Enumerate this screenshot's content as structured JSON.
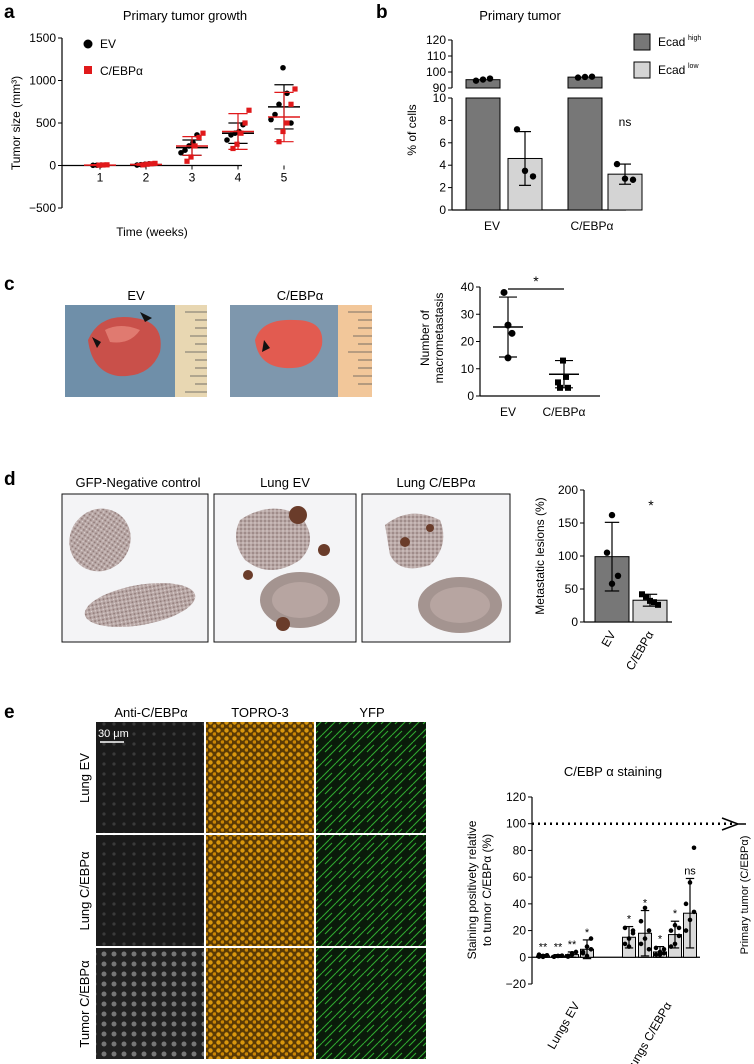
{
  "panels": {
    "a": "a",
    "b": "b",
    "c": "c",
    "d": "d",
    "e": "e"
  },
  "photo_labels": {
    "c_ev": "EV",
    "c_cebpa": "C/EBPα",
    "d_neg": "GFP-Negative control",
    "d_ev": "Lung EV",
    "d_cebpa": "Lung C/EBPα",
    "e_col1": "Anti-C/EBPα",
    "e_col2": "TOPRO-3",
    "e_col3": "YFP",
    "e_row1": "Lung EV",
    "e_row2": "Lung C/EBPα",
    "e_row3": "Tumor C/EBPα",
    "e_scale": "30 μm"
  },
  "colors": {
    "ev": "#000000",
    "cebpa": "#e0191b",
    "ecad_high": "#777777",
    "ecad_low": "#d4d4d4"
  },
  "chart_data": [
    {
      "id": "a",
      "type": "scatter",
      "title": "Primary tumor growth",
      "xlabel": "Time (weeks)",
      "ylabel": "Tumor size (mm³)",
      "ylim": [
        -500,
        1500
      ],
      "yticks": [
        "−500",
        "0",
        "500",
        "1000",
        "1500"
      ],
      "categories": [
        "1",
        "2",
        "3",
        "4",
        "5"
      ],
      "legend": [
        "EV",
        "C/EBPα"
      ],
      "series": [
        {
          "name": "EV",
          "mean": [
            3,
            10,
            210,
            380,
            690
          ],
          "sd": [
            5,
            10,
            90,
            120,
            260
          ],
          "points": [
            [
              2,
              4,
              6
            ],
            [
              5,
              10,
              15,
              20
            ],
            [
              150,
              180,
              230,
              270,
              360
            ],
            [
              300,
              360,
              380,
              400,
              480
            ],
            [
              540,
              600,
              720,
              1150,
              850,
              500
            ]
          ]
        },
        {
          "name": "C/EBPα",
          "mean": [
            5,
            12,
            230,
            400,
            570
          ],
          "sd": [
            5,
            10,
            110,
            210,
            290
          ],
          "points": [
            [
              4,
              6,
              8
            ],
            [
              8,
              15,
              20,
              25
            ],
            [
              50,
              100,
              230,
              330,
              380
            ],
            [
              200,
              250,
              380,
              500,
              650
            ],
            [
              280,
              400,
              500,
              720,
              900
            ]
          ]
        }
      ]
    },
    {
      "id": "b",
      "type": "bar",
      "title": "Primary tumor",
      "ylabel": "% of cells",
      "categories": [
        "EV",
        "C/EBPα"
      ],
      "legend": [
        "Ecad",
        "high",
        "Ecad",
        "low"
      ],
      "yticks_top": [
        "90",
        "100",
        "110",
        "120"
      ],
      "yticks_bottom": [
        "0",
        "2",
        "4",
        "6",
        "8",
        "10"
      ],
      "series": [
        {
          "name": "Ecadhigh",
          "values": [
            95.2,
            96.8
          ],
          "sd": [
            0.6,
            0.4
          ],
          "points": [
            [
              94.6,
              95.3,
              95.9
            ],
            [
              96.5,
              96.9,
              97.1
            ]
          ]
        },
        {
          "name": "Ecadlow",
          "values": [
            4.6,
            3.2
          ],
          "sd": [
            2.4,
            0.9
          ],
          "points": [
            [
              7.2,
              3.5,
              3.0
            ],
            [
              4.1,
              2.8,
              2.7
            ]
          ]
        }
      ],
      "annotations": [
        "ns"
      ]
    },
    {
      "id": "c",
      "type": "scatter",
      "ylabel": "Number of macrometastasis",
      "categories": [
        "EV",
        "C/EBPα"
      ],
      "ylim": [
        0,
        40
      ],
      "yticks": [
        "0",
        "10",
        "20",
        "30",
        "40"
      ],
      "series": [
        {
          "name": "EV",
          "mean": 25.3,
          "sd": 11,
          "points": [
            38,
            26,
            23,
            14
          ]
        },
        {
          "name": "C/EBPα",
          "mean": 8,
          "sd": 5,
          "points": [
            13,
            7,
            5,
            3,
            3
          ]
        }
      ],
      "annotations": [
        "*"
      ]
    },
    {
      "id": "d",
      "type": "bar",
      "ylabel": "Metastatic lesions (%)",
      "categories": [
        "EV",
        "C/EBPα"
      ],
      "ylim": [
        0,
        200
      ],
      "yticks": [
        "0",
        "50",
        "100",
        "150",
        "200"
      ],
      "values": [
        99,
        33
      ],
      "sd": [
        52,
        9
      ],
      "points": [
        [
          162,
          105,
          70,
          58
        ],
        [
          42,
          38,
          32,
          30,
          26
        ]
      ],
      "annotations": [
        "*"
      ]
    },
    {
      "id": "e",
      "type": "bar",
      "title": "C/EBP α staining",
      "ylabel": "Staining positivety relative to tumor C/EBPα (%)",
      "ylim": [
        -20,
        120
      ],
      "yticks": [
        "−20",
        "0",
        "20",
        "40",
        "60",
        "80",
        "100",
        "120"
      ],
      "groups": [
        "Lungs EV",
        "Lungs C/EBPα"
      ],
      "reference_line": {
        "value": 100,
        "label": "Primary tumor (C/EBPα)"
      },
      "values": [
        1,
        1,
        2,
        6,
        15,
        18,
        4,
        17,
        33
      ],
      "sd": [
        1,
        1,
        2,
        7,
        8,
        17,
        4,
        10,
        26
      ],
      "points": [
        [
          0.5,
          1,
          1.5,
          2,
          0.3
        ],
        [
          0.5,
          1,
          1.2,
          0.4
        ],
        [
          1,
          3,
          4,
          0.5,
          2
        ],
        [
          4,
          8,
          14,
          3,
          1,
          6
        ],
        [
          10,
          14,
          18,
          22,
          8,
          20
        ],
        [
          10,
          14,
          20,
          27,
          37,
          6
        ],
        [
          2,
          4,
          6,
          7,
          2,
          3
        ],
        [
          8,
          10,
          16,
          20,
          24,
          22
        ],
        [
          20,
          28,
          34,
          40,
          56,
          82
        ]
      ],
      "significance": [
        "**",
        "**",
        "**",
        "*",
        "*",
        "*",
        "*",
        "*",
        "ns"
      ]
    }
  ]
}
